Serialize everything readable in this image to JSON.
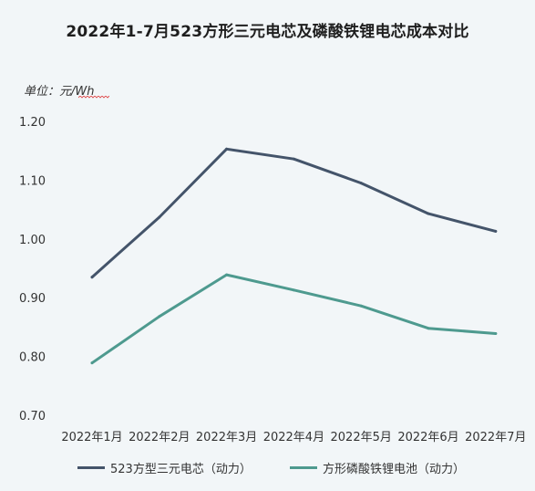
{
  "chart_data": {
    "type": "line",
    "title": "2022年1-7月523方形三元电芯及磷酸铁锂电芯成本对比",
    "unit_label": "单位：元/Wh",
    "categories": [
      "2022年1月",
      "2022年2月",
      "2022年3月",
      "2022年4月",
      "2022年5月",
      "2022年6月",
      "2022年7月"
    ],
    "series": [
      {
        "name": "523方型三元电芯（动力）",
        "color": "#44546a",
        "values": [
          0.935,
          1.037,
          1.153,
          1.136,
          1.095,
          1.043,
          1.013
        ]
      },
      {
        "name": "方形磷酸铁锂电池（动力）",
        "color": "#4e9a8f",
        "values": [
          0.789,
          0.868,
          0.939,
          0.913,
          0.886,
          0.848,
          0.839
        ]
      }
    ],
    "ylim": [
      0.7,
      1.2
    ],
    "yticks": [
      "0.70",
      "0.80",
      "0.90",
      "1.00",
      "1.10",
      "1.20"
    ],
    "grid": false,
    "legend_position": "bottom"
  }
}
